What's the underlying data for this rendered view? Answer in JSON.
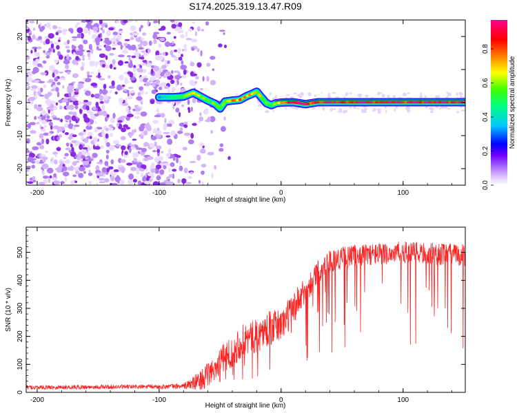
{
  "title": "S174.2025.319.13.47.R09",
  "chart_data": [
    {
      "type": "heatmap",
      "name": "spectrogram",
      "xlabel": "Height of straight line (km)",
      "ylabel": "Frequency (Hz)",
      "xlim": [
        -209,
        151
      ],
      "ylim": [
        -25,
        25
      ],
      "xticks": [
        -200,
        -100,
        0,
        100
      ],
      "yticks": [
        -20,
        -10,
        0,
        10,
        20
      ],
      "colorbar": {
        "label": "Normalized spectral amplitude",
        "range": [
          0.0,
          0.97
        ],
        "ticks": [
          0.0,
          0.2,
          0.4,
          0.6,
          0.8
        ],
        "colors": [
          "#ffffff",
          "#d9b8ff",
          "#a060ff",
          "#7000ff",
          "#0000ff",
          "#00c8ff",
          "#00ff80",
          "#40ff00",
          "#ffff00",
          "#ff8000",
          "#ff0000",
          "#ff0090"
        ]
      },
      "noise_region": {
        "x": [
          -209,
          -65
        ],
        "amplitude_range": [
          0.0,
          0.12
        ]
      },
      "ridge": {
        "x": [
          -100,
          -90,
          -80,
          -72,
          -66,
          -60,
          -54,
          -50,
          -46,
          -40,
          -34,
          -28,
          -24,
          -20,
          -16,
          -12,
          -8,
          -4,
          0,
          10,
          20,
          30,
          60,
          100,
          151
        ],
        "frequency": [
          1.6,
          1.6,
          1.8,
          3.0,
          1.8,
          0.6,
          -0.4,
          -1.8,
          0.3,
          0.6,
          0.8,
          2.0,
          2.6,
          3.3,
          1.5,
          -0.2,
          -0.8,
          -0.2,
          0.0,
          0.1,
          -0.5,
          0.1,
          0.1,
          0.1,
          0.1
        ],
        "amplitude": [
          0.3,
          0.45,
          0.6,
          0.7,
          0.55,
          0.5,
          0.55,
          0.5,
          0.55,
          0.7,
          0.8,
          0.75,
          0.7,
          0.65,
          0.6,
          0.55,
          0.55,
          0.6,
          0.7,
          0.9,
          0.9,
          0.85,
          0.9,
          0.9,
          0.9
        ]
      }
    },
    {
      "type": "line",
      "name": "snr",
      "xlabel": "Height of straight line (km)",
      "ylabel": "SNR (10 * v/v)",
      "xlim": [
        -209,
        151
      ],
      "ylim": [
        0,
        590
      ],
      "xticks": [
        -200,
        -100,
        0,
        100
      ],
      "yticks": [
        0,
        100,
        200,
        300,
        400,
        500
      ],
      "color": "#ff2020",
      "envelope_x": [
        -209,
        -100,
        -80,
        -70,
        -60,
        -50,
        -40,
        -30,
        -20,
        -10,
        0,
        10,
        20,
        30,
        40,
        60,
        80,
        100,
        120,
        151
      ],
      "envelope_median": [
        18,
        20,
        22,
        35,
        60,
        110,
        150,
        190,
        200,
        230,
        240,
        300,
        360,
        430,
        470,
        490,
        495,
        500,
        495,
        490
      ],
      "envelope_spread": [
        8,
        8,
        10,
        30,
        45,
        50,
        60,
        60,
        60,
        60,
        60,
        60,
        50,
        40,
        40,
        40,
        40,
        40,
        40,
        40
      ]
    }
  ]
}
